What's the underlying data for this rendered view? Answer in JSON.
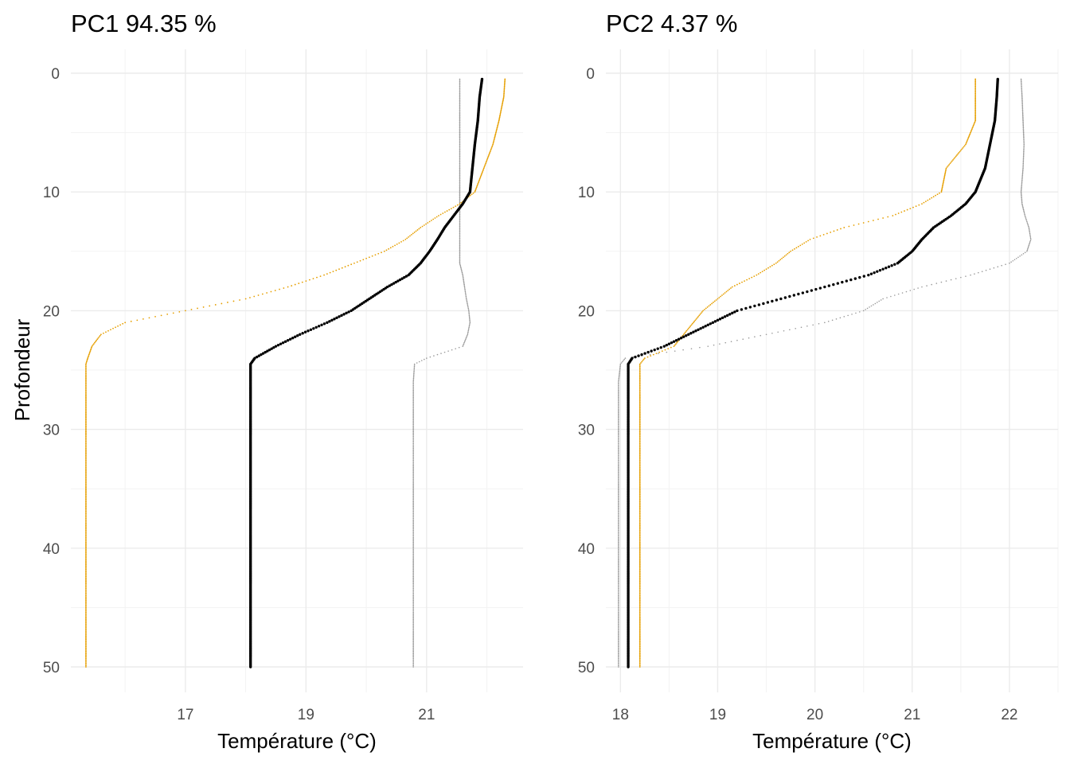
{
  "chart_data": [
    {
      "type": "line",
      "title": "PC1 94.35 %",
      "xlabel": "Température (°C)",
      "ylabel": "Profondeur",
      "xlim": [
        15.1,
        22.6
      ],
      "ylim": [
        0,
        50
      ],
      "y_reversed": true,
      "x_ticks": [
        17,
        19,
        21
      ],
      "y_ticks": [
        0,
        10,
        20,
        30,
        40,
        50
      ],
      "grid": true,
      "depth": [
        0.5,
        2,
        4,
        6,
        8,
        10,
        11,
        12,
        13,
        14,
        15,
        16,
        17,
        18,
        19,
        20,
        21,
        22,
        23,
        24,
        24.5,
        26,
        30,
        35,
        40,
        45,
        50
      ],
      "series": [
        {
          "color": "#000000",
          "style": "dots-bold",
          "values": [
            21.92,
            21.88,
            21.85,
            21.8,
            21.76,
            21.72,
            21.6,
            21.45,
            21.3,
            21.18,
            21.05,
            20.9,
            20.7,
            20.35,
            20.05,
            19.75,
            19.35,
            18.9,
            18.5,
            18.15,
            18.08,
            18.08,
            18.08,
            18.08,
            18.08,
            18.08,
            18.08
          ]
        },
        {
          "color": "#e69f00",
          "style": "dots",
          "values": [
            22.3,
            22.28,
            22.2,
            22.1,
            21.95,
            21.8,
            21.55,
            21.2,
            20.9,
            20.65,
            20.3,
            19.8,
            19.3,
            18.7,
            18.0,
            17.0,
            16.0,
            15.6,
            15.45,
            15.38,
            15.35,
            15.35,
            15.35,
            15.35,
            15.35,
            15.35,
            15.35
          ]
        },
        {
          "color": "#999999",
          "style": "dots-light",
          "values": [
            21.55,
            21.55,
            21.55,
            21.55,
            21.55,
            21.55,
            21.55,
            21.55,
            21.55,
            21.55,
            21.55,
            21.55,
            21.6,
            21.63,
            21.66,
            21.7,
            21.72,
            21.68,
            21.6,
            21.0,
            20.8,
            20.78,
            20.78,
            20.78,
            20.78,
            20.78,
            20.78
          ]
        }
      ]
    },
    {
      "type": "line",
      "title": "PC2 4.37 %",
      "xlabel": "Température (°C)",
      "ylabel": "",
      "xlim": [
        17.85,
        22.5
      ],
      "ylim": [
        0,
        50
      ],
      "y_reversed": true,
      "x_ticks": [
        18,
        19,
        20,
        21,
        22
      ],
      "y_ticks": [
        0,
        10,
        20,
        30,
        40,
        50
      ],
      "grid": true,
      "depth": [
        0.5,
        2,
        4,
        6,
        8,
        10,
        11,
        12,
        13,
        14,
        15,
        16,
        17,
        18,
        19,
        20,
        21,
        22,
        23,
        24,
        24.5,
        26,
        30,
        35,
        40,
        45,
        50
      ],
      "series": [
        {
          "color": "#000000",
          "style": "dots-bold",
          "values": [
            21.88,
            21.87,
            21.85,
            21.8,
            21.75,
            21.65,
            21.55,
            21.4,
            21.22,
            21.1,
            21.0,
            20.85,
            20.55,
            20.1,
            19.65,
            19.2,
            18.95,
            18.7,
            18.45,
            18.12,
            18.08,
            18.08,
            18.08,
            18.08,
            18.08,
            18.08,
            18.08
          ]
        },
        {
          "color": "#e69f00",
          "style": "dots",
          "values": [
            21.65,
            21.65,
            21.65,
            21.55,
            21.35,
            21.3,
            21.1,
            20.8,
            20.3,
            19.95,
            19.75,
            19.6,
            19.4,
            19.15,
            19.0,
            18.85,
            18.75,
            18.65,
            18.55,
            18.25,
            18.2,
            18.2,
            18.2,
            18.2,
            18.2,
            18.2,
            18.2
          ]
        },
        {
          "color": "#999999",
          "style": "dots-light",
          "values": [
            22.12,
            22.13,
            22.14,
            22.15,
            22.14,
            22.12,
            22.13,
            22.16,
            22.2,
            22.22,
            22.18,
            22.0,
            21.6,
            21.1,
            20.7,
            20.5,
            20.1,
            19.5,
            18.9,
            18.05,
            18.0,
            17.98,
            17.98,
            17.98,
            17.98,
            17.98,
            17.98
          ]
        }
      ]
    }
  ]
}
